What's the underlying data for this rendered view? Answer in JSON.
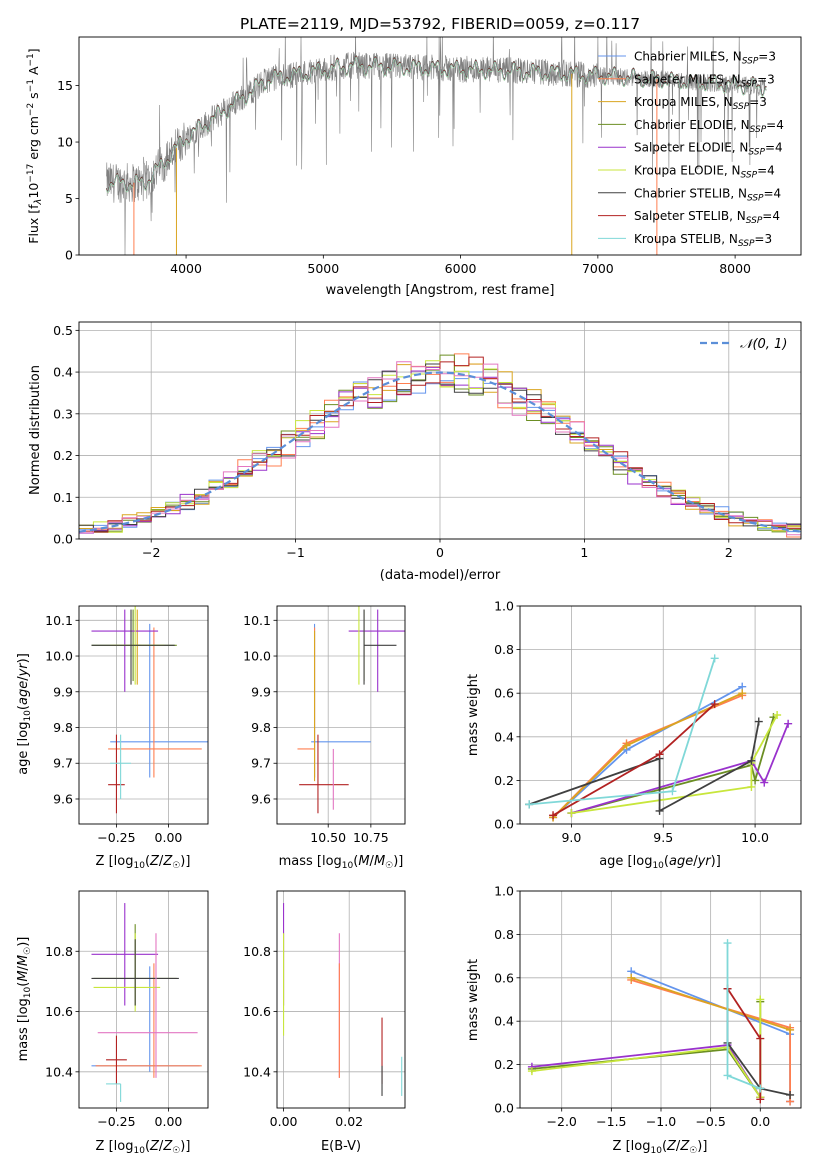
{
  "figure_title": "PLATE=2119, MJD=53792, FIBERID=0059, z=0.117",
  "chart_data": [
    {
      "id": "spectrum",
      "type": "line",
      "title": "PLATE=2119, MJD=53792, FIBERID=0059, z=0.117",
      "xlabel": "wavelength [Angstrom, rest frame]",
      "ylabel": "Flux [f_λ10^-17 erg cm^-2 s^-1 A^-1]",
      "xlim": [
        3220,
        8480
      ],
      "ylim": [
        0,
        19.3
      ],
      "xticks": [
        4000,
        5000,
        6000,
        7000,
        8000
      ],
      "yticks": [
        0,
        5,
        10,
        15
      ],
      "legend_position": "top-right",
      "series": [
        {
          "name": "Chabrier MILES, N_SSP=3",
          "color": "#6495ed"
        },
        {
          "name": "Salpeter MILES, N_SSP=3",
          "color": "#ff7f50"
        },
        {
          "name": "Kroupa MILES, N_SSP=3",
          "color": "#daa520"
        },
        {
          "name": "Chabrier ELODIE, N_SSP=4",
          "color": "#6b8e23"
        },
        {
          "name": "Salpeter ELODIE, N_SSP=4",
          "color": "#9932cc"
        },
        {
          "name": "Kroupa ELODIE, N_SSP=4",
          "color": "#c8e63c"
        },
        {
          "name": "Chabrier STELIB, N_SSP=4",
          "color": "#404040"
        },
        {
          "name": "Salpeter STELIB, N_SSP=4",
          "color": "#b22222"
        },
        {
          "name": "Kroupa STELIB, N_SSP=3",
          "color": "#80d8d8"
        }
      ],
      "data_color": "#808080",
      "grid": false
    },
    {
      "id": "residuals",
      "type": "step",
      "xlabel": "(data-model)/error",
      "ylabel": "Normed distribution",
      "xlim": [
        -2.5,
        2.5
      ],
      "ylim": [
        0,
        0.52
      ],
      "xticks": [
        -2,
        -1,
        0,
        1,
        2
      ],
      "yticks": [
        0.0,
        0.1,
        0.2,
        0.3,
        0.4,
        0.5
      ],
      "legend": "𝒩(0, 1)",
      "legend_position": "top-right",
      "grid": true
    },
    {
      "id": "age_vs_Z",
      "type": "errorbar",
      "xlabel": "Z [log10(Z/Z☉)]",
      "ylabel": "age  [log10(age/yr)]",
      "xlim": [
        -0.43,
        0.19
      ],
      "ylim": [
        9.53,
        10.14
      ],
      "xticks": [
        -0.25,
        0.0
      ],
      "yticks": [
        9.6,
        9.7,
        9.8,
        9.9,
        10.0,
        10.1
      ],
      "grid": true,
      "points": [
        {
          "color": "#6495ed",
          "x": -0.09,
          "xerr": [
            0.19,
            0.28
          ],
          "y": 9.76,
          "yerr": [
            0.1,
            0.33
          ]
        },
        {
          "color": "#ff7f50",
          "x": -0.07,
          "xerr": [
            0.22,
            0.23
          ],
          "y": 9.74,
          "yerr": [
            0.08,
            0.34
          ]
        },
        {
          "color": "#daa520",
          "x": -0.15,
          "xerr": [
            0.02,
            0.02
          ],
          "y": 10.03,
          "yerr": [
            0.11,
            0.1
          ]
        },
        {
          "color": "#6b8e23",
          "x": -0.17,
          "xerr": [
            0.2,
            0.21
          ],
          "y": 10.03,
          "yerr": [
            0.1,
            0.1
          ]
        },
        {
          "color": "#9932cc",
          "x": -0.21,
          "xerr": [
            0.16,
            0.16
          ],
          "y": 10.07,
          "yerr": [
            0.17,
            0.06
          ]
        },
        {
          "color": "#c8e63c",
          "x": -0.16,
          "xerr": [
            0.12,
            0.14
          ],
          "y": 10.03,
          "yerr": [
            0.11,
            0.12
          ]
        },
        {
          "color": "#404040",
          "x": -0.18,
          "xerr": [
            0.19,
            0.21
          ],
          "y": 10.03,
          "yerr": [
            0.11,
            0.1
          ]
        },
        {
          "color": "#b22222",
          "x": -0.25,
          "xerr": [
            0.04,
            0.04
          ],
          "y": 9.64,
          "yerr": [
            0.08,
            0.14
          ]
        },
        {
          "color": "#80d8d8",
          "x": -0.23,
          "xerr": [
            0.05,
            0.05
          ],
          "y": 9.7,
          "yerr": [
            0.1,
            0.08
          ]
        }
      ]
    },
    {
      "id": "age_vs_mass",
      "type": "errorbar",
      "xlabel": "mass [log10(M/M☉)]",
      "xlim": [
        10.2,
        10.95
      ],
      "ylim": [
        9.53,
        10.14
      ],
      "xticks": [
        10.5,
        10.75
      ],
      "yticks": [
        9.6,
        9.7,
        9.8,
        9.9,
        10.0,
        10.1
      ],
      "grid": true,
      "points": [
        {
          "color": "#6495ed",
          "x": 10.42,
          "xerr": [
            0.02,
            0.33
          ],
          "y": 9.76,
          "yerr": [
            0.1,
            0.33
          ]
        },
        {
          "color": "#ff7f50",
          "x": 10.42,
          "xerr": [
            0.1,
            0.0
          ],
          "y": 9.74,
          "yerr": [
            0.08,
            0.34
          ]
        },
        {
          "color": "#daa520",
          "x": 10.42,
          "xerr": [
            0.0,
            0.0
          ],
          "y": 9.75,
          "yerr": [
            0.1,
            0.32
          ]
        },
        {
          "color": "#6b8e23",
          "x": 10.71,
          "xerr": [
            0.0,
            0.0
          ],
          "y": 10.03,
          "yerr": [
            0.1,
            0.1
          ]
        },
        {
          "color": "#9932cc",
          "x": 10.79,
          "xerr": [
            0.17,
            0.16
          ],
          "y": 10.07,
          "yerr": [
            0.17,
            0.06
          ]
        },
        {
          "color": "#c8e63c",
          "x": 10.68,
          "xerr": [
            0.0,
            0.0
          ],
          "y": 10.03,
          "yerr": [
            0.11,
            0.12
          ]
        },
        {
          "color": "#404040",
          "x": 10.71,
          "xerr": [
            0.0,
            0.19
          ],
          "y": 10.03,
          "yerr": [
            0.11,
            0.1
          ]
        },
        {
          "color": "#b22222",
          "x": 10.44,
          "xerr": [
            0.11,
            0.18
          ],
          "y": 9.64,
          "yerr": [
            0.08,
            0.14
          ]
        },
        {
          "color": "#e377c2",
          "x": 10.53,
          "xerr": [
            0.0,
            0.0
          ],
          "y": 9.74,
          "yerr": [
            0.17,
            0.0
          ]
        }
      ]
    },
    {
      "id": "weight_vs_age",
      "type": "line",
      "xlabel": "age  [log10(age/yr)]",
      "ylabel": "mass weight",
      "xlim": [
        8.72,
        10.25
      ],
      "ylim": [
        0,
        1.0
      ],
      "xticks": [
        9.0,
        9.5,
        10.0
      ],
      "yticks": [
        0.0,
        0.2,
        0.4,
        0.6,
        0.8,
        1.0
      ],
      "grid": true,
      "series": [
        {
          "color": "#6495ed",
          "x": [
            8.9,
            9.3,
            9.93
          ],
          "y": [
            0.03,
            0.34,
            0.63
          ]
        },
        {
          "color": "#ff7f50",
          "x": [
            8.9,
            9.3,
            9.93
          ],
          "y": [
            0.03,
            0.37,
            0.59
          ]
        },
        {
          "color": "#daa520",
          "x": [
            8.9,
            9.3,
            9.93
          ],
          "y": [
            0.03,
            0.36,
            0.6
          ]
        },
        {
          "color": "#6b8e23",
          "x": [
            9.0,
            9.98,
            10.0,
            10.1
          ],
          "y": [
            0.05,
            0.27,
            0.2,
            0.49
          ]
        },
        {
          "color": "#9932cc",
          "x": [
            9.0,
            9.98,
            10.05,
            10.18
          ],
          "y": [
            0.05,
            0.29,
            0.19,
            0.46
          ]
        },
        {
          "color": "#c8e63c",
          "x": [
            9.0,
            9.98,
            9.98,
            10.12
          ],
          "y": [
            0.05,
            0.17,
            0.28,
            0.5
          ]
        },
        {
          "color": "#404040",
          "x": [
            8.77,
            9.48,
            9.48,
            9.98,
            10.02
          ],
          "y": [
            0.09,
            0.3,
            0.06,
            0.29,
            0.47
          ]
        },
        {
          "color": "#b22222",
          "x": [
            8.9,
            9.48,
            9.78
          ],
          "y": [
            0.04,
            0.32,
            0.55
          ]
        },
        {
          "color": "#80d8d8",
          "x": [
            8.77,
            9.55,
            9.78
          ],
          "y": [
            0.09,
            0.15,
            0.76
          ]
        }
      ]
    },
    {
      "id": "mass_vs_Z",
      "type": "errorbar",
      "xlabel": "Z [log10(Z/Z☉)]",
      "ylabel": "mass [log10(M/M☉)]",
      "xlim": [
        -0.43,
        0.19
      ],
      "ylim": [
        10.28,
        11.0
      ],
      "xticks": [
        -0.25,
        0.0
      ],
      "yticks": [
        10.4,
        10.6,
        10.8
      ],
      "grid": true,
      "points": [
        {
          "color": "#6495ed",
          "x": -0.09,
          "xerr": [
            0.28,
            0.24
          ],
          "y": 10.42,
          "yerr": [
            0.02,
            0.33
          ]
        },
        {
          "color": "#ff7f50",
          "x": -0.07,
          "xerr": [
            0.28,
            0.23
          ],
          "y": 10.42,
          "yerr": [
            0.04,
            0.34
          ]
        },
        {
          "color": "#6b8e23",
          "x": -0.16,
          "xerr": [
            0.2,
            0.2
          ],
          "y": 10.71,
          "yerr": [
            0.09,
            0.18
          ]
        },
        {
          "color": "#9932cc",
          "x": -0.21,
          "xerr": [
            0.16,
            0.16
          ],
          "y": 10.79,
          "yerr": [
            0.17,
            0.17
          ]
        },
        {
          "color": "#c8e63c",
          "x": -0.16,
          "xerr": [
            0.2,
            0.12
          ],
          "y": 10.68,
          "yerr": [
            0.08,
            0.18
          ]
        },
        {
          "color": "#404040",
          "x": -0.16,
          "xerr": [
            0.21,
            0.21
          ],
          "y": 10.71,
          "yerr": [
            0.09,
            0.13
          ]
        },
        {
          "color": "#b22222",
          "x": -0.25,
          "xerr": [
            0.05,
            0.05
          ],
          "y": 10.44,
          "yerr": [
            0.08,
            0.08
          ]
        },
        {
          "color": "#e377c2",
          "x": -0.06,
          "xerr": [
            0.28,
            0.2
          ],
          "y": 10.53,
          "yerr": [
            0.15,
            0.33
          ]
        },
        {
          "color": "#80d8d8",
          "x": -0.23,
          "xerr": [
            0.07,
            0.0
          ],
          "y": 10.36,
          "yerr": [
            0.06,
            0.0
          ]
        }
      ]
    },
    {
      "id": "mass_vs_ebv",
      "type": "errorbar",
      "xlabel": "E(B-V)",
      "xlim": [
        -0.002,
        0.037
      ],
      "ylim": [
        10.28,
        11.0
      ],
      "xticks": [
        0.0,
        0.02
      ],
      "xticklabels": [
        "0.00",
        "0.02"
      ],
      "yticks": [
        10.4,
        10.6,
        10.8
      ],
      "grid": true,
      "points": [
        {
          "color": "#9932cc",
          "x": 0.0,
          "y": 10.79,
          "yerr": [
            0.17,
            0.17
          ]
        },
        {
          "color": "#c8e63c",
          "x": 0.0,
          "y": 10.68,
          "yerr": [
            0.16,
            0.18
          ]
        },
        {
          "color": "#e377c2",
          "x": 0.017,
          "y": 10.53,
          "yerr": [
            0.15,
            0.33
          ]
        },
        {
          "color": "#ff7f50",
          "x": 0.017,
          "y": 10.42,
          "yerr": [
            0.04,
            0.34
          ]
        },
        {
          "color": "#b22222",
          "x": 0.03,
          "y": 10.44,
          "yerr": [
            0.08,
            0.14
          ]
        },
        {
          "color": "#404040",
          "x": 0.03,
          "y": 10.42,
          "yerr": [
            0.1,
            0.0
          ]
        },
        {
          "color": "#80d8d8",
          "x": 0.036,
          "y": 10.38,
          "yerr": [
            0.06,
            0.07
          ]
        }
      ]
    },
    {
      "id": "weight_vs_Z",
      "type": "line",
      "xlabel": "Z [log10(Z/Z☉)]",
      "ylabel": "mass weight",
      "xlim": [
        -2.42,
        0.41
      ],
      "ylim": [
        0,
        1.0
      ],
      "xticks": [
        -2.0,
        -1.5,
        -1.0,
        -0.5,
        0.0
      ],
      "yticks": [
        0.0,
        0.2,
        0.4,
        0.6,
        0.8,
        1.0
      ],
      "grid": true,
      "series": [
        {
          "color": "#6495ed",
          "x": [
            -1.3,
            0.3,
            0.3
          ],
          "y": [
            0.63,
            0.34,
            0.03
          ]
        },
        {
          "color": "#ff7f50",
          "x": [
            -1.3,
            0.3,
            0.3
          ],
          "y": [
            0.59,
            0.37,
            0.03
          ]
        },
        {
          "color": "#daa520",
          "x": [
            -1.3,
            0.3
          ],
          "y": [
            0.6,
            0.36
          ]
        },
        {
          "color": "#6b8e23",
          "x": [
            -2.3,
            -0.33,
            0.0,
            0.0
          ],
          "y": [
            0.18,
            0.27,
            0.05,
            0.49
          ]
        },
        {
          "color": "#9932cc",
          "x": [
            -2.3,
            -0.33,
            0.0
          ],
          "y": [
            0.19,
            0.29,
            0.05
          ]
        },
        {
          "color": "#c8e63c",
          "x": [
            -2.3,
            -0.33,
            0.0,
            0.0
          ],
          "y": [
            0.17,
            0.28,
            0.05,
            0.5
          ]
        },
        {
          "color": "#404040",
          "x": [
            -0.33,
            -0.33,
            0.0,
            0.3
          ],
          "y": [
            0.55,
            0.3,
            0.09,
            0.06
          ]
        },
        {
          "color": "#b22222",
          "x": [
            -0.33,
            0.0,
            0.0
          ],
          "y": [
            0.55,
            0.32,
            0.04
          ]
        },
        {
          "color": "#80d8d8",
          "x": [
            -0.33,
            -0.33,
            0.0
          ],
          "y": [
            0.76,
            0.15,
            0.09
          ]
        }
      ]
    }
  ]
}
